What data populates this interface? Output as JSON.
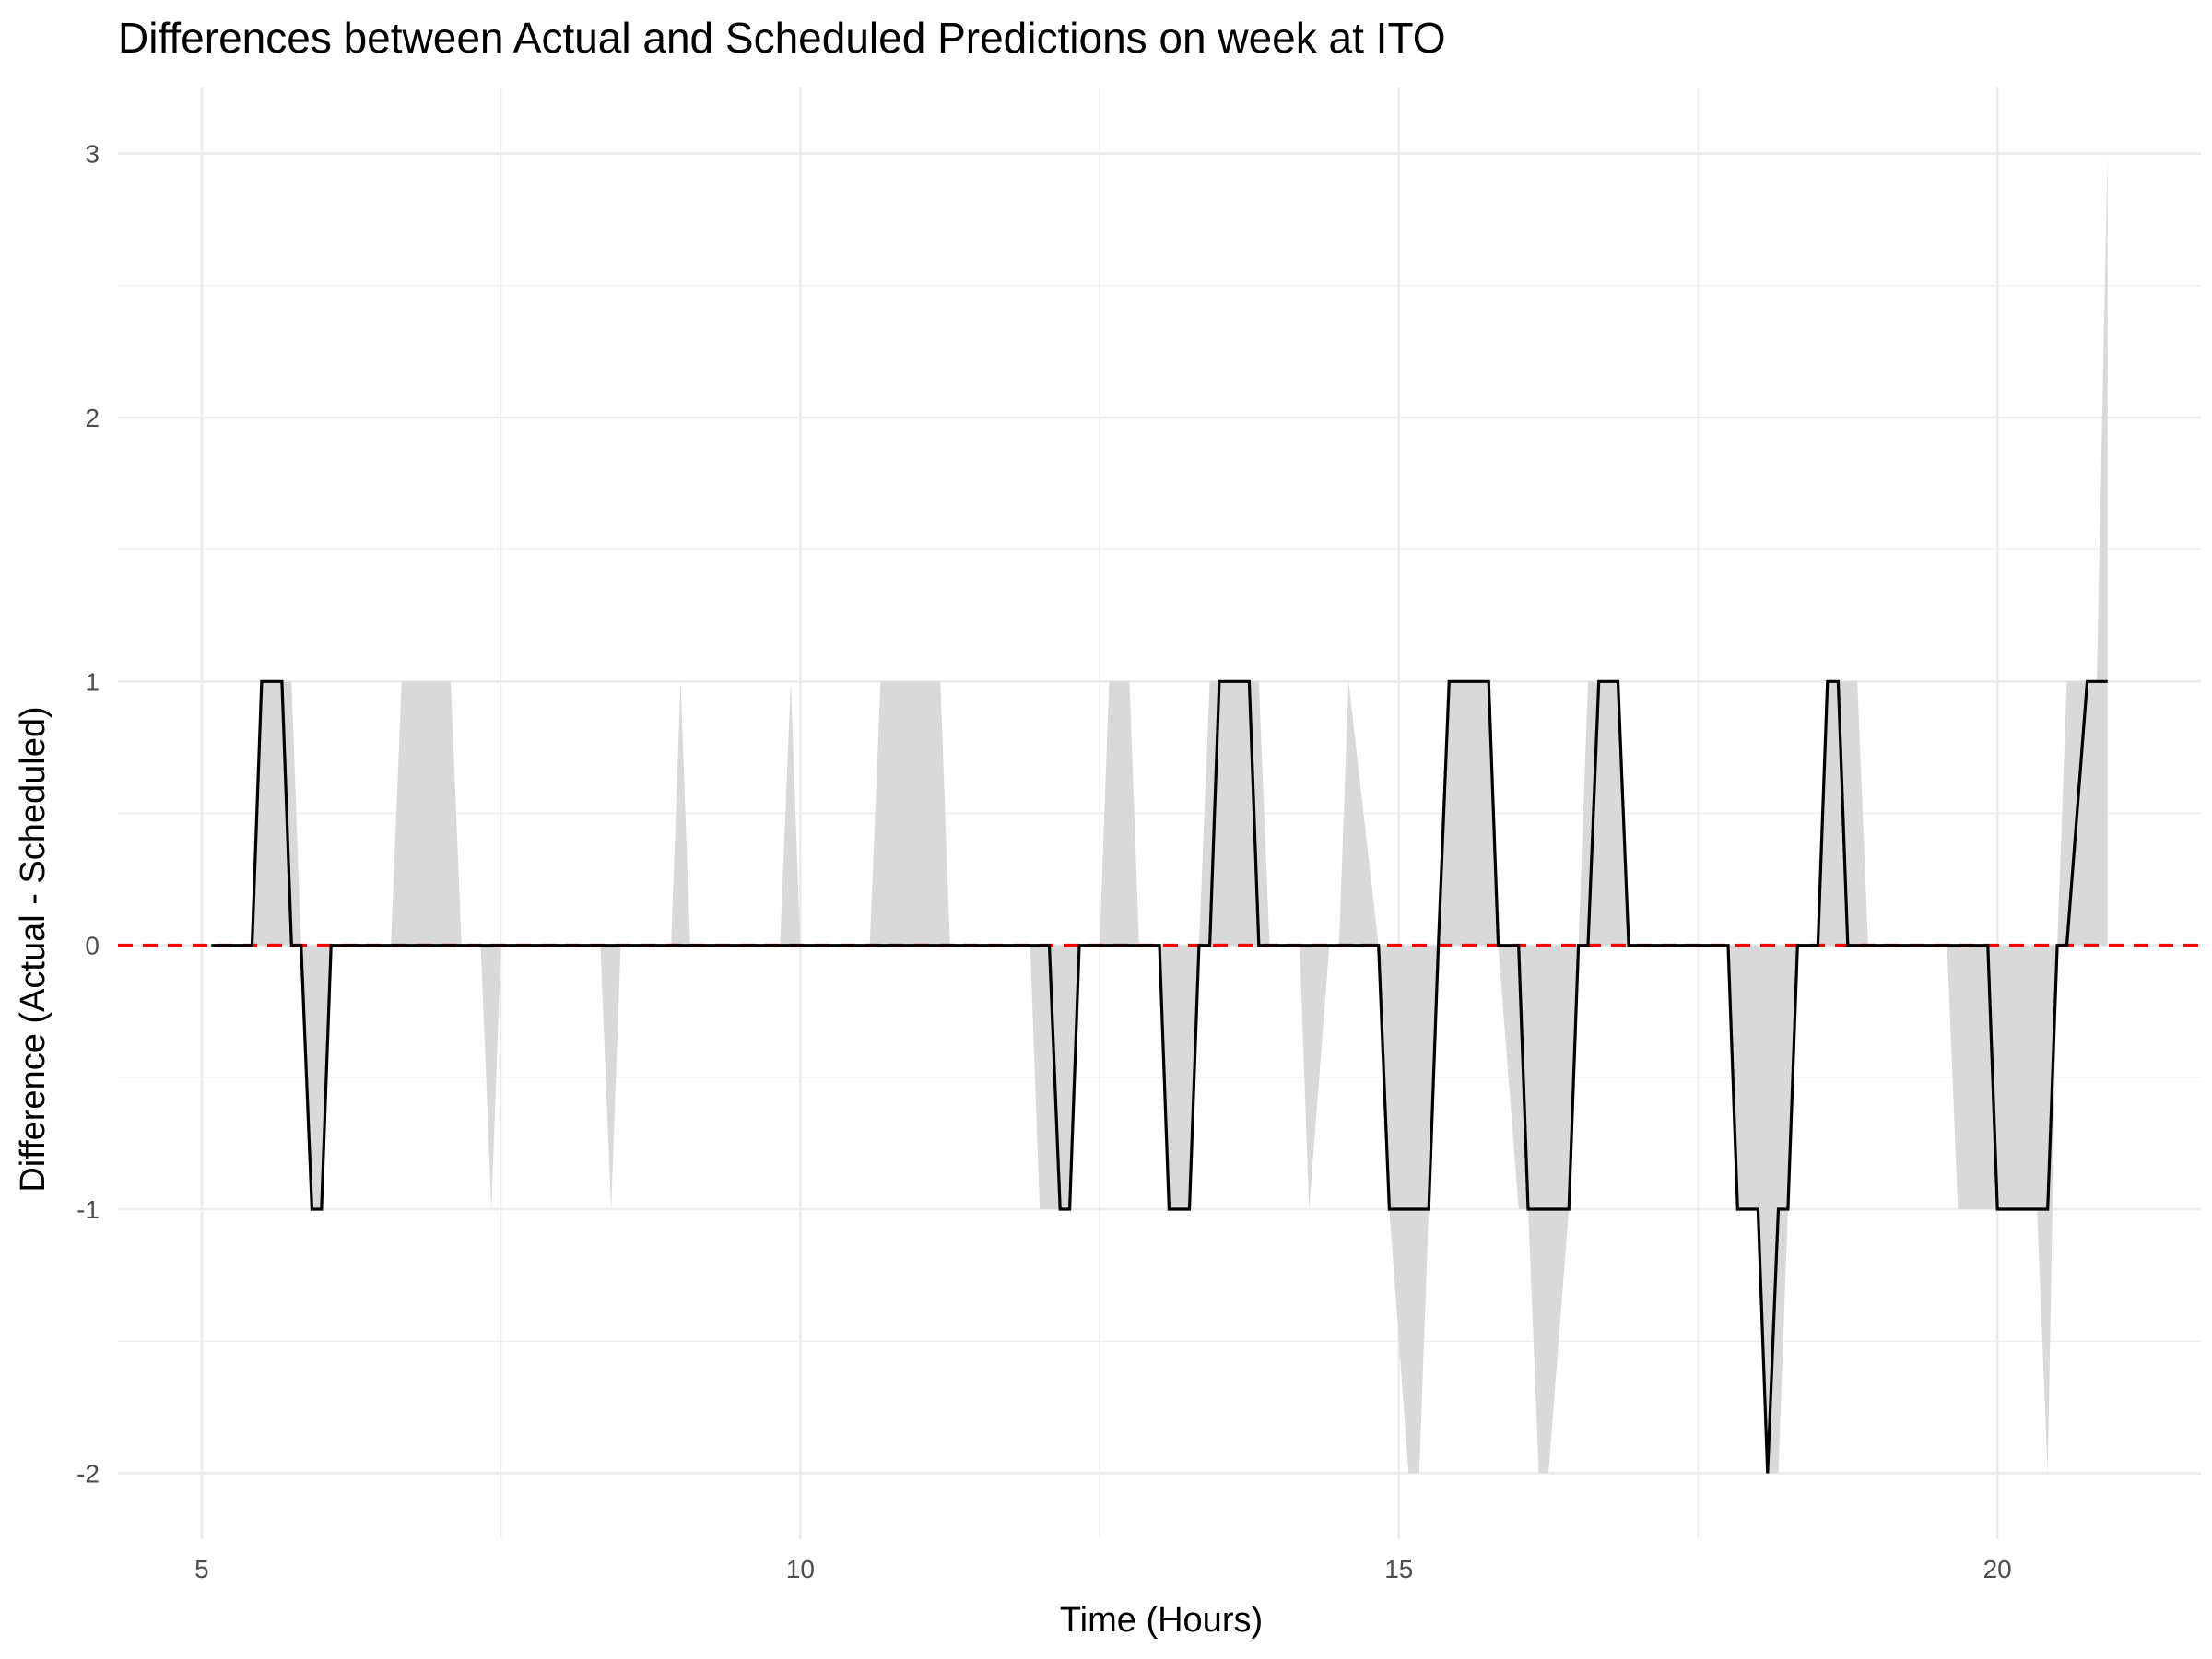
{
  "chart_data": {
    "type": "line",
    "title": "Differences between Actual and Scheduled Predictions on week at ITO",
    "xlabel": "Time (Hours)",
    "ylabel": "Difference (Actual - Scheduled)",
    "xlim": [
      4.3,
      21.7
    ],
    "ylim": [
      -2.25,
      3.25
    ],
    "x_ticks": [
      5,
      10,
      15,
      20
    ],
    "y_ticks": [
      -2,
      -1,
      0,
      1,
      2,
      3
    ],
    "grid": true,
    "legend": "none",
    "colors": {
      "line": "#000000",
      "band": "#d9d9d9",
      "reference": "#ff0000",
      "grid": "#ebebeb"
    },
    "reference_line": {
      "y": 0,
      "style": "dashed"
    },
    "line": {
      "x": [
        5.08,
        5.42,
        5.5,
        5.67,
        5.75,
        5.83,
        5.92,
        6.0,
        6.08,
        12.08,
        12.17,
        12.25,
        12.33,
        13.0,
        13.08,
        13.25,
        13.33,
        13.42,
        13.5,
        13.75,
        13.83,
        13.92,
        14.83,
        14.92,
        15.25,
        15.33,
        15.42,
        15.75,
        15.83,
        16.0,
        16.08,
        16.42,
        16.5,
        16.58,
        16.67,
        16.83,
        16.92,
        17.75,
        17.83,
        18.0,
        18.08,
        18.17,
        18.25,
        18.33,
        18.5,
        18.58,
        18.67,
        18.75,
        19.92,
        20.0,
        20.42,
        20.5,
        20.58,
        20.75,
        20.83,
        20.92
      ],
      "y": [
        0,
        0,
        1,
        1,
        0,
        0,
        -1,
        -1,
        0,
        0,
        -1,
        -1,
        0,
        0,
        -1,
        -1,
        0,
        0,
        1,
        1,
        0,
        0,
        0,
        -1,
        -1,
        0,
        1,
        1,
        0,
        0,
        -1,
        -1,
        0,
        0,
        1,
        1,
        0,
        0,
        -1,
        -1,
        -2,
        -1,
        -1,
        0,
        0,
        1,
        1,
        0,
        0,
        -1,
        -1,
        0,
        0,
        1,
        1,
        1
      ]
    },
    "band": {
      "x": [
        5.08,
        5.42,
        5.5,
        5.67,
        5.75,
        5.83,
        5.92,
        6.0,
        6.08,
        6.58,
        6.67,
        7.08,
        7.17,
        7.33,
        7.42,
        7.5,
        8.33,
        8.42,
        8.5,
        8.92,
        9.0,
        9.08,
        9.83,
        9.92,
        10.0,
        10.58,
        10.67,
        11.17,
        11.25,
        11.92,
        12.0,
        12.08,
        12.17,
        12.25,
        12.33,
        12.5,
        12.58,
        12.75,
        12.83,
        13.0,
        13.08,
        13.25,
        13.33,
        13.42,
        13.5,
        13.75,
        13.83,
        13.92,
        14.17,
        14.25,
        14.42,
        14.5,
        14.58,
        14.83,
        14.92,
        15.08,
        15.17,
        15.25,
        15.33,
        15.42,
        15.75,
        15.83,
        16.0,
        16.08,
        16.17,
        16.25,
        16.42,
        16.5,
        16.58,
        16.67,
        16.83,
        16.92,
        17.75,
        17.83,
        18.0,
        18.08,
        18.17,
        18.25,
        18.33,
        18.5,
        18.58,
        18.67,
        18.75,
        18.83,
        18.92,
        19.58,
        19.67,
        19.92,
        20.0,
        20.25,
        20.33,
        20.42,
        20.5,
        20.58,
        20.75,
        20.83,
        20.92
      ],
      "lower": [
        0,
        0,
        0,
        0,
        0,
        0,
        -1,
        -1,
        0,
        0,
        0,
        0,
        0,
        0,
        -1,
        0,
        0,
        -1,
        0,
        0,
        0,
        0,
        0,
        0,
        0,
        0,
        0,
        0,
        0,
        0,
        -1,
        -1,
        -1,
        -1,
        0,
        0,
        0,
        0,
        0,
        0,
        -1,
        -1,
        0,
        0,
        0,
        0,
        0,
        0,
        0,
        -1,
        0,
        0,
        0,
        0,
        -1,
        -2,
        -2,
        -1,
        0,
        0,
        0,
        0,
        -1,
        -1,
        -2,
        -2,
        -1,
        0,
        0,
        0,
        0,
        0,
        0,
        -1,
        -1,
        -2,
        -2,
        -1,
        0,
        0,
        0,
        0,
        0,
        0,
        0,
        0,
        -1,
        -1,
        -1,
        -1,
        -1,
        -2,
        0,
        0,
        0,
        0,
        0
      ],
      "upper": [
        0,
        0,
        1,
        1,
        1,
        0,
        0,
        0,
        0,
        0,
        1,
        1,
        0,
        0,
        0,
        0,
        0,
        0,
        0,
        0,
        1,
        0,
        0,
        1,
        0,
        0,
        1,
        1,
        0,
        0,
        0,
        0,
        0,
        0,
        0,
        0,
        1,
        1,
        0,
        0,
        0,
        0,
        0,
        1,
        1,
        1,
        1,
        0,
        0,
        0,
        0,
        0,
        1,
        0,
        0,
        0,
        0,
        0,
        0,
        1,
        1,
        0,
        0,
        0,
        0,
        0,
        0,
        0,
        1,
        1,
        1,
        0,
        0,
        0,
        0,
        0,
        0,
        0,
        0,
        0,
        1,
        1,
        1,
        1,
        0,
        0,
        0,
        0,
        0,
        0,
        0,
        0,
        0,
        1,
        1,
        1,
        3
      ]
    }
  }
}
